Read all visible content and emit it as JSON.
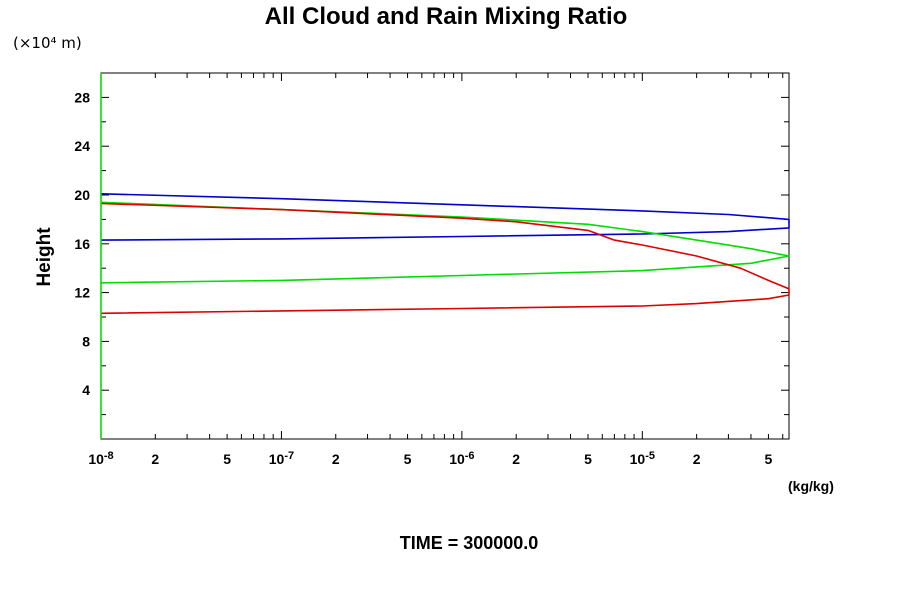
{
  "chart_data": {
    "type": "line",
    "title": "All Cloud and Rain Mixing Ratio",
    "ylabel": "Height",
    "yunit": "(×10⁴ m)",
    "xunit": "(kg/kg)",
    "xscale": "log",
    "xlim": [
      1e-08,
      6.5e-05
    ],
    "ylim": [
      0,
      30
    ],
    "y_ticks": [
      "4",
      "8",
      "12",
      "16",
      "20",
      "24",
      "28"
    ],
    "x_ticks_major": [
      {
        "base": "10",
        "exp": "-8",
        "value": 1e-08
      },
      {
        "base": "10",
        "exp": "-7",
        "value": 1e-07
      },
      {
        "base": "10",
        "exp": "-6",
        "value": 1e-06
      },
      {
        "base": "10",
        "exp": "-5",
        "value": 1e-05
      }
    ],
    "x_ticks_minor": [
      {
        "label": "2",
        "value": 2e-08
      },
      {
        "label": "5",
        "value": 5e-08
      },
      {
        "label": "2",
        "value": 2e-07
      },
      {
        "label": "5",
        "value": 5e-07
      },
      {
        "label": "2",
        "value": 2e-06
      },
      {
        "label": "5",
        "value": 5e-06
      },
      {
        "label": "2",
        "value": 2e-05
      },
      {
        "label": "5",
        "value": 5e-05
      }
    ],
    "series": [
      {
        "color": "#0000cc",
        "points": [
          [
            1e-08,
            20.1
          ],
          [
            1e-07,
            19.7
          ],
          [
            1e-06,
            19.2
          ],
          [
            1e-05,
            18.7
          ],
          [
            3e-05,
            18.4
          ],
          [
            6.5e-05,
            18.0
          ],
          [
            6.5e-05,
            17.3
          ],
          [
            3e-05,
            17.0
          ],
          [
            1e-05,
            16.8
          ],
          [
            1e-06,
            16.6
          ],
          [
            1e-07,
            16.4
          ],
          [
            1e-08,
            16.3
          ]
        ]
      },
      {
        "color": "#00dd00",
        "points": [
          [
            1e-08,
            19.4
          ],
          [
            1e-07,
            18.8
          ],
          [
            1e-06,
            18.2
          ],
          [
            5e-06,
            17.6
          ],
          [
            1e-05,
            17.0
          ],
          [
            2e-05,
            16.3
          ],
          [
            4e-05,
            15.6
          ],
          [
            6.5e-05,
            15.0
          ],
          [
            4e-05,
            14.4
          ],
          [
            1e-05,
            13.8
          ],
          [
            1e-06,
            13.4
          ],
          [
            1e-07,
            13.0
          ],
          [
            1e-08,
            12.8
          ]
        ]
      },
      {
        "color": "#dd0000",
        "points": [
          [
            1e-08,
            19.3
          ],
          [
            1e-07,
            18.8
          ],
          [
            1e-06,
            18.1
          ],
          [
            2e-06,
            17.8
          ],
          [
            5e-06,
            17.1
          ],
          [
            7e-06,
            16.3
          ],
          [
            1e-05,
            15.9
          ],
          [
            2e-05,
            15.0
          ],
          [
            3.5e-05,
            14.0
          ],
          [
            5e-05,
            13.0
          ],
          [
            6.5e-05,
            12.3
          ],
          [
            6.5e-05,
            11.8
          ],
          [
            5e-05,
            11.5
          ],
          [
            2e-05,
            11.1
          ],
          [
            1e-05,
            10.9
          ],
          [
            1e-06,
            10.7
          ],
          [
            1e-07,
            10.5
          ],
          [
            1e-08,
            10.3
          ]
        ]
      },
      {
        "color": "#00dd00",
        "points": [
          [
            1e-08,
            0.0
          ],
          [
            1e-08,
            30.0
          ]
        ]
      }
    ],
    "grid": false
  },
  "footer": {
    "time_label": "TIME = 300000.0"
  }
}
